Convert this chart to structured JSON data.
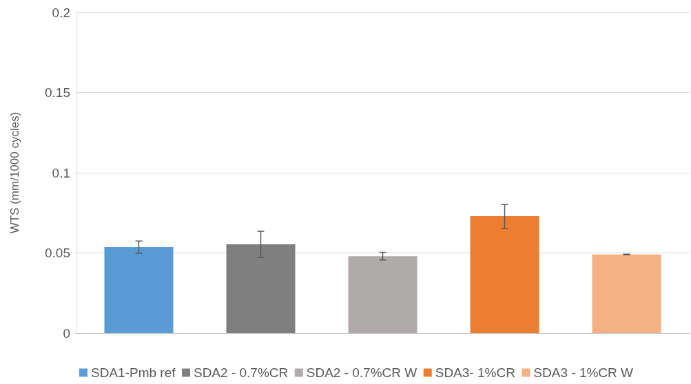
{
  "chart_data": {
    "type": "bar",
    "ylabel": "WTS (mm/1000 cycles)",
    "categories": [
      null
    ],
    "ylim": [
      0,
      0.2
    ],
    "yticks": [
      0,
      0.05,
      0.1,
      0.15,
      0.2
    ],
    "grid": "y",
    "legend": "bottom",
    "series": [
      {
        "name": "SDA1-Pmb ref",
        "color": "#5b9bd5",
        "values": [
          0.0536
        ],
        "errors": [
          [
            0.0498,
            0.0574
          ]
        ]
      },
      {
        "name": "SDA2 - 0.7%CR",
        "color": "#7f7f7f",
        "values": [
          0.0554
        ],
        "errors": [
          [
            0.0472,
            0.0635
          ]
        ]
      },
      {
        "name": "SDA2 - 0.7%CR W",
        "color": "#afabab",
        "values": [
          0.048
        ],
        "errors": [
          [
            0.0456,
            0.0504
          ]
        ]
      },
      {
        "name": "SDA3- 1%CR",
        "color": "#ed7d31",
        "values": [
          0.073
        ],
        "errors": [
          [
            0.0652,
            0.0802
          ]
        ]
      },
      {
        "name": "SDA3 - 1%CR W",
        "color": "#f4b183",
        "values": [
          0.049
        ],
        "errors": [
          [
            0.0488,
            0.0492
          ]
        ]
      }
    ]
  }
}
